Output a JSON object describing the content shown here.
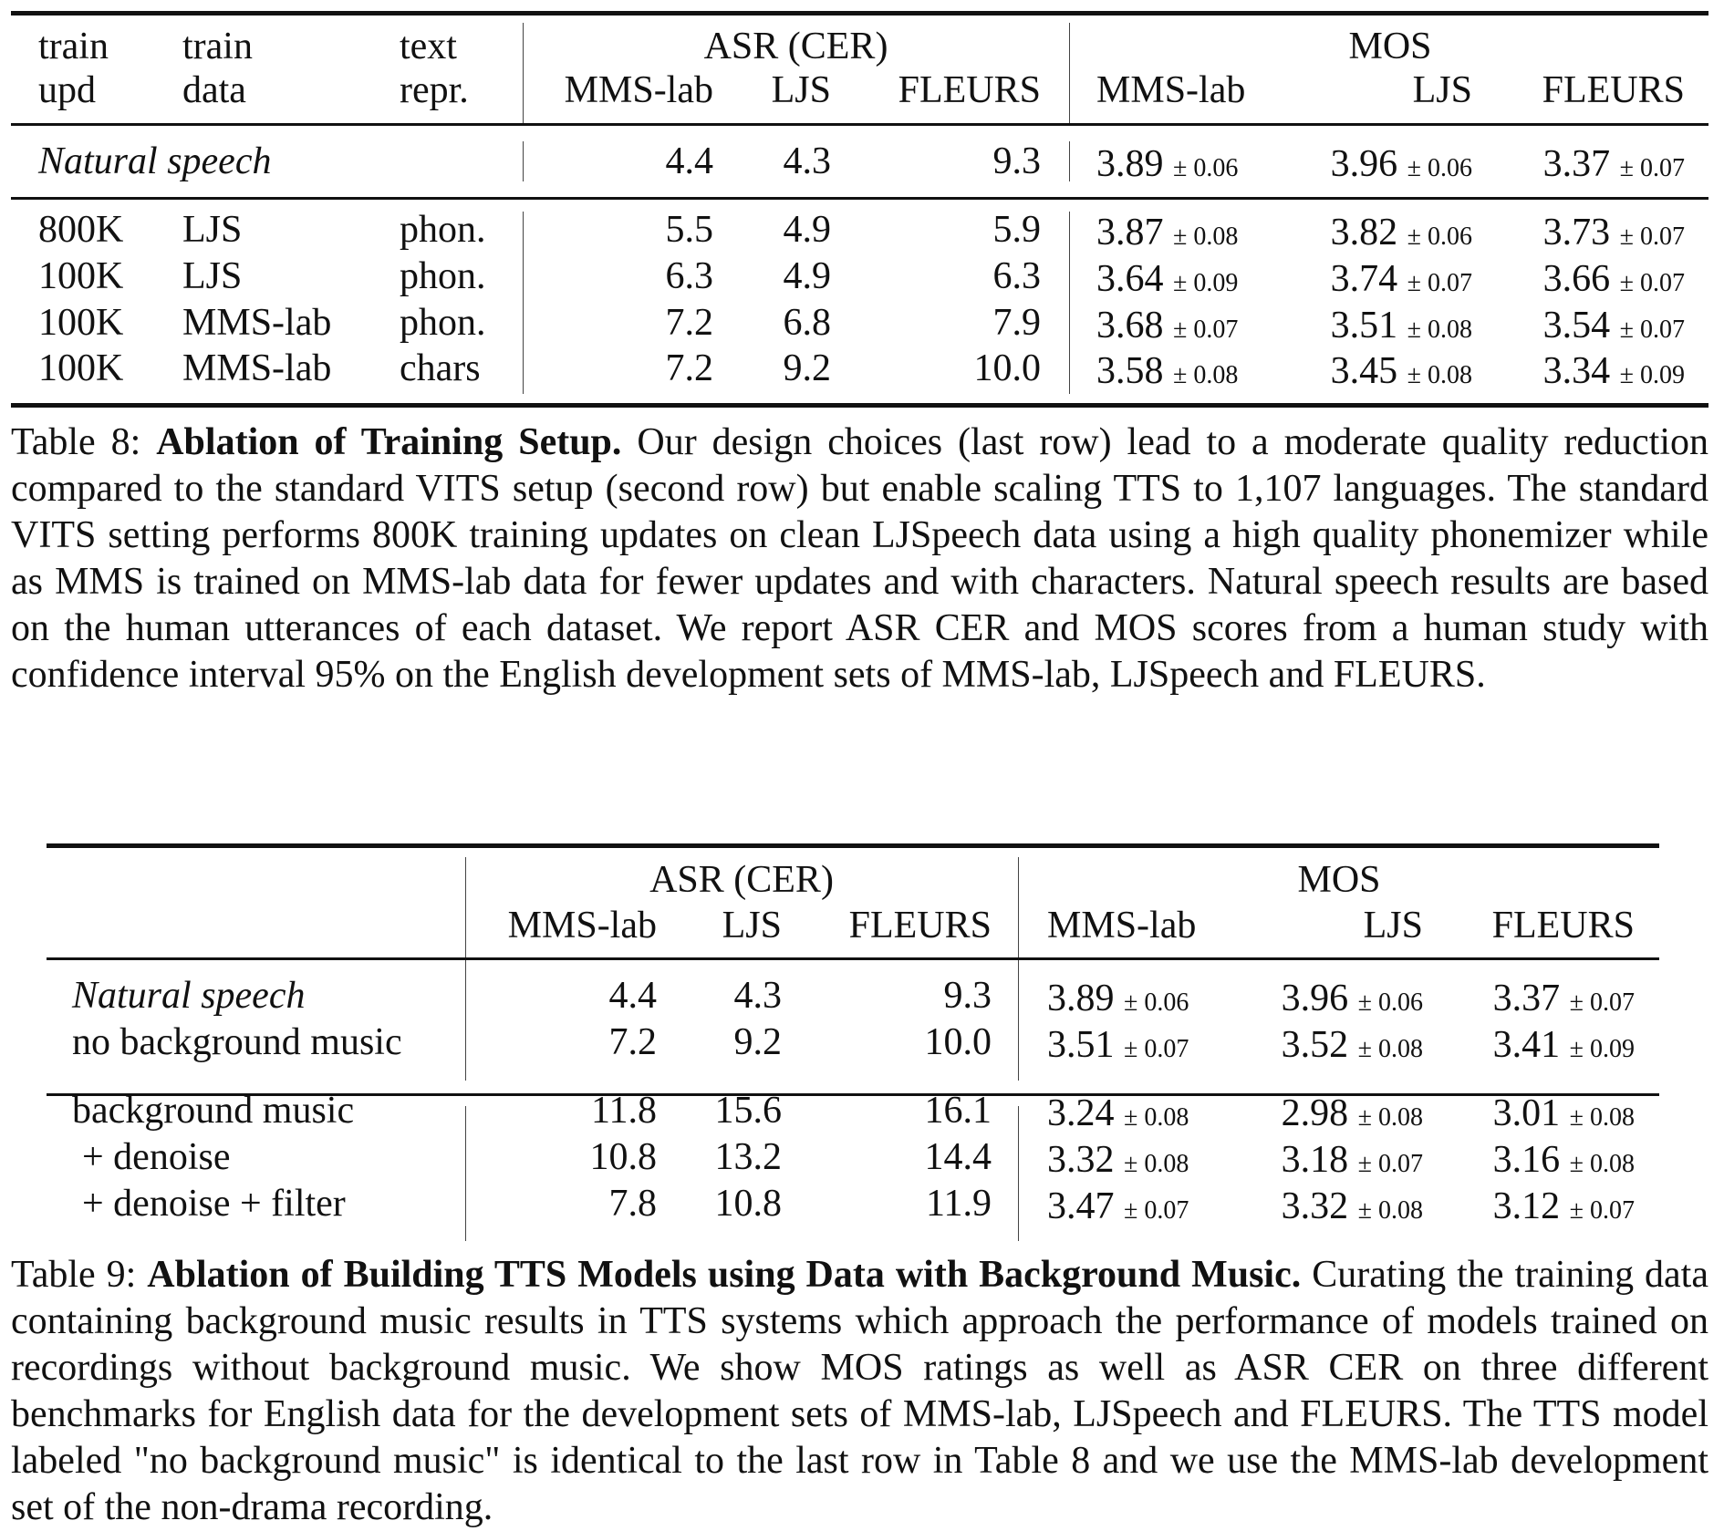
{
  "table8": {
    "group_headers": {
      "asr": "ASR (CER)",
      "mos": "MOS"
    },
    "col_headers": [
      [
        "train",
        "upd"
      ],
      [
        "train",
        "data"
      ],
      [
        "text",
        "repr."
      ],
      [
        "",
        "MMS-lab"
      ],
      [
        "",
        "LJS"
      ],
      [
        "",
        "FLEURS"
      ],
      [
        "",
        "MMS-lab"
      ],
      [
        "",
        "LJS"
      ],
      [
        "",
        "FLEURS"
      ]
    ],
    "natural": {
      "label": "Natural speech",
      "asr": [
        "4.4",
        "4.3",
        "9.3"
      ],
      "mos": [
        {
          "v": "3.89",
          "ci": "± 0.06"
        },
        {
          "v": "3.96",
          "ci": "± 0.06"
        },
        {
          "v": "3.37",
          "ci": "± 0.07"
        }
      ]
    },
    "rows": [
      {
        "upd": "800K",
        "data": "LJS",
        "repr": "phon.",
        "asr": [
          "5.5",
          "4.9",
          "5.9"
        ],
        "mos": [
          {
            "v": "3.87",
            "ci": "± 0.08"
          },
          {
            "v": "3.82",
            "ci": "± 0.06"
          },
          {
            "v": "3.73",
            "ci": "± 0.07"
          }
        ]
      },
      {
        "upd": "100K",
        "data": "LJS",
        "repr": "phon.",
        "asr": [
          "6.3",
          "4.9",
          "6.3"
        ],
        "mos": [
          {
            "v": "3.64",
            "ci": "± 0.09"
          },
          {
            "v": "3.74",
            "ci": "± 0.07"
          },
          {
            "v": "3.66",
            "ci": "± 0.07"
          }
        ]
      },
      {
        "upd": "100K",
        "data": "MMS-lab",
        "repr": "phon.",
        "asr": [
          "7.2",
          "6.8",
          "7.9"
        ],
        "mos": [
          {
            "v": "3.68",
            "ci": "± 0.07"
          },
          {
            "v": "3.51",
            "ci": "± 0.08"
          },
          {
            "v": "3.54",
            "ci": "± 0.07"
          }
        ]
      },
      {
        "upd": "100K",
        "data": "MMS-lab",
        "repr": "chars",
        "asr": [
          "7.2",
          "9.2",
          "10.0"
        ],
        "mos": [
          {
            "v": "3.58",
            "ci": "± 0.08"
          },
          {
            "v": "3.45",
            "ci": "± 0.08"
          },
          {
            "v": "3.34",
            "ci": "± 0.09"
          }
        ]
      }
    ],
    "caption": {
      "label": "Table 8:",
      "title": "Ablation of Training Setup.",
      "body": "Our design choices (last row) lead to a moderate quality reduction compared to the standard VITS setup (second row) but enable scaling TTS to 1,107 languages. The standard VITS setting performs 800K training updates on clean LJSpeech data using a high quality phonemizer while as MMS is trained on MMS-lab data for fewer updates and with characters. Natural speech results are based on the human utterances of each dataset. We report ASR CER and MOS scores from a human study with confidence interval 95% on the English development sets of MMS-lab, LJSpeech and FLEURS."
    }
  },
  "table9": {
    "group_headers": {
      "asr": "ASR (CER)",
      "mos": "MOS"
    },
    "col_headers": [
      "MMS-lab",
      "LJS",
      "FLEURS",
      "MMS-lab",
      "LJS",
      "FLEURS"
    ],
    "groups": [
      [
        {
          "label": "Natural speech",
          "italic": true,
          "asr": [
            "4.4",
            "4.3",
            "9.3"
          ],
          "mos": [
            {
              "v": "3.89",
              "ci": "± 0.06"
            },
            {
              "v": "3.96",
              "ci": "± 0.06"
            },
            {
              "v": "3.37",
              "ci": "± 0.07"
            }
          ]
        },
        {
          "label": "no background music",
          "italic": false,
          "asr": [
            "7.2",
            "9.2",
            "10.0"
          ],
          "mos": [
            {
              "v": "3.51",
              "ci": "± 0.07"
            },
            {
              "v": "3.52",
              "ci": "± 0.08"
            },
            {
              "v": "3.41",
              "ci": "± 0.09"
            }
          ]
        }
      ],
      [
        {
          "label": "background music",
          "italic": false,
          "asr": [
            "11.8",
            "15.6",
            "16.1"
          ],
          "mos": [
            {
              "v": "3.24",
              "ci": "± 0.08"
            },
            {
              "v": "2.98",
              "ci": "± 0.08"
            },
            {
              "v": "3.01",
              "ci": "± 0.08"
            }
          ]
        },
        {
          "label": "+ denoise",
          "italic": false,
          "indent": true,
          "asr": [
            "10.8",
            "13.2",
            "14.4"
          ],
          "mos": [
            {
              "v": "3.32",
              "ci": "± 0.08"
            },
            {
              "v": "3.18",
              "ci": "± 0.07"
            },
            {
              "v": "3.16",
              "ci": "± 0.08"
            }
          ]
        },
        {
          "label": "+ denoise + filter",
          "italic": false,
          "indent": true,
          "asr": [
            "7.8",
            "10.8",
            "11.9"
          ],
          "mos": [
            {
              "v": "3.47",
              "ci": "± 0.07"
            },
            {
              "v": "3.32",
              "ci": "± 0.08"
            },
            {
              "v": "3.12",
              "ci": "± 0.07"
            }
          ]
        }
      ]
    ],
    "caption": {
      "label": "Table 9:",
      "title": "Ablation of Building TTS Models using Data with Background Music.",
      "body": "Curating the training data containing background music results in TTS systems which approach the performance of models trained on recordings without background music. We show MOS ratings as well as ASR CER on three different benchmarks for English data for the development sets of MMS-lab, LJSpeech and FLEURS. The TTS model labeled \"no background music\" is identical to the last row in Table 8 and we use the MMS-lab development set of the non-drama recording."
    }
  }
}
